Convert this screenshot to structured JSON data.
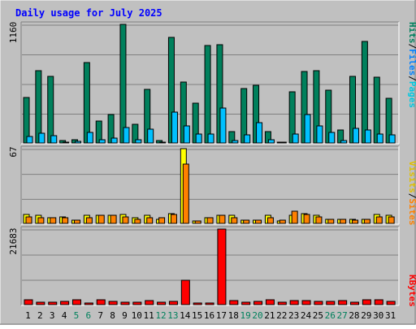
{
  "title": "Daily usage for July 2025",
  "colors": {
    "background": "#c0c0c0",
    "title": "#0000ff",
    "hits": "#00805c",
    "files": "#00c0ff",
    "pages": "#00e0ff",
    "visits": "#ffff00",
    "sites": "#ff8000",
    "kbytes": "#ff0000",
    "weekend_label": "#00805c",
    "weekday_label": "#000000"
  },
  "panels": {
    "top": {
      "max_label": "1160",
      "legend": {
        "pages": "Pages",
        "files": "Files",
        "hits": "Hits",
        "sep": "/"
      }
    },
    "mid": {
      "max_label": "67",
      "legend": {
        "sites": "Sites",
        "visits": "Visits",
        "sep": "/"
      }
    },
    "bot": {
      "max_label": "21683",
      "legend": {
        "kbytes": "KBytes"
      }
    }
  },
  "chart_data": {
    "type": "bar",
    "title": "Daily usage for July 2025",
    "categories": [
      "1",
      "2",
      "3",
      "4",
      "5",
      "6",
      "7",
      "8",
      "9",
      "10",
      "11",
      "12",
      "13",
      "14",
      "15",
      "16",
      "17",
      "18",
      "19",
      "20",
      "21",
      "22",
      "23",
      "24",
      "25",
      "26",
      "27",
      "28",
      "29",
      "30",
      "31"
    ],
    "weekend_days": [
      5,
      6,
      12,
      13,
      19,
      20,
      26,
      27
    ],
    "panels": [
      {
        "name": "top",
        "ylim": [
          0,
          1160
        ],
        "series": [
          {
            "name": "Hits",
            "values": [
              443,
              705,
              653,
              25,
              30,
              786,
              216,
              277,
              1160,
              185,
              525,
              20,
              1030,
              598,
              391,
              956,
              960,
              110,
              535,
              561,
              113,
              5,
              501,
              702,
              710,
              514,
              130,
              650,
              990,
              642,
              436
            ]
          },
          {
            "name": "Files",
            "values": [
              65,
              95,
              70,
              10,
              15,
              105,
              35,
              50,
              150,
              30,
              135,
              10,
              300,
              165,
              90,
              90,
              340,
              20,
              80,
              195,
              30,
              3,
              85,
              280,
              165,
              100,
              25,
              140,
              130,
              85,
              80
            ]
          },
          {
            "name": "Pages",
            "values": [
              0,
              0,
              0,
              0,
              0,
              0,
              0,
              0,
              0,
              0,
              0,
              0,
              0,
              0,
              0,
              0,
              0,
              0,
              0,
              0,
              0,
              0,
              0,
              0,
              0,
              0,
              0,
              0,
              0,
              0,
              0
            ]
          }
        ]
      },
      {
        "name": "mid",
        "ylim": [
          0,
          67
        ],
        "series": [
          {
            "name": "Visits",
            "values": [
              8,
              7,
              5,
              6,
              3,
              7,
              7,
              7,
              8,
              5,
              7,
              4,
              9,
              67,
              2,
              5,
              7,
              7,
              3,
              3,
              7,
              2,
              7,
              9,
              7,
              4,
              4,
              4,
              4,
              8,
              7
            ]
          },
          {
            "name": "Sites",
            "values": [
              6,
              5,
              5,
              5,
              3,
              5,
              7,
              7,
              6,
              4,
              5,
              5,
              8,
              53,
              2,
              5,
              7,
              5,
              3,
              3,
              5,
              3,
              11,
              8,
              6,
              4,
              4,
              3,
              4,
              6,
              6
            ]
          }
        ]
      },
      {
        "name": "bot",
        "ylim": [
          0,
          21683
        ],
        "series": [
          {
            "name": "KBytes",
            "values": [
              1500,
              800,
              600,
              900,
              1500,
              400,
              1300,
              900,
              700,
              700,
              1100,
              800,
              1000,
              7000,
              500,
              500,
              21683,
              1200,
              700,
              900,
              1300,
              700,
              1200,
              1200,
              1000,
              1000,
              1100,
              700,
              1300,
              1300,
              1000
            ]
          }
        ]
      }
    ]
  }
}
